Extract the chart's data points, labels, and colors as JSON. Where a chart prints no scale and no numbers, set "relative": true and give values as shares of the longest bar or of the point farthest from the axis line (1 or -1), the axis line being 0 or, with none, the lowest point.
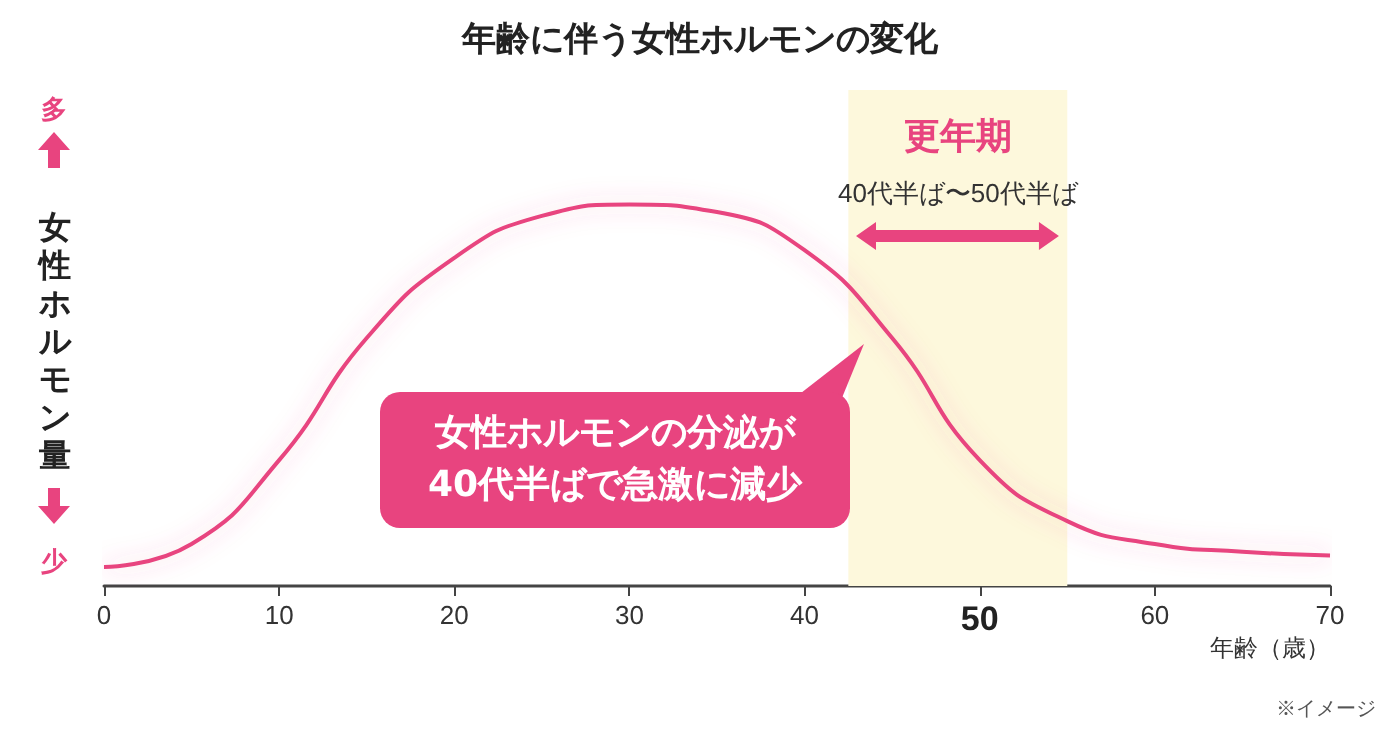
{
  "chart_data": {
    "type": "line",
    "title": "年齢に伴う女性ホルモンの変化",
    "xlabel": "年齢（歳）",
    "ylabel": "女性ホルモン量",
    "relative": true,
    "x": [
      0,
      5,
      10,
      15,
      20,
      25,
      30,
      35,
      40,
      45,
      50,
      55,
      60,
      65,
      70
    ],
    "series": [
      {
        "color": "#e8447f",
        "values": [
          0.05,
          0.11,
          0.33,
          0.65,
          0.86,
          0.97,
          1,
          0.98,
          0.88,
          0.65,
          0.33,
          0.17,
          0.11,
          0.09,
          0.08
        ]
      }
    ],
    "xlim": [
      0,
      70
    ],
    "xticks": [
      0,
      10,
      20,
      30,
      40,
      50,
      60,
      70
    ],
    "grid": false,
    "marker": "none",
    "line_style": "solid",
    "bands": [
      {
        "axis": "x",
        "from": 42.5,
        "to": 55,
        "label": "更年期",
        "color": "#fdf8dc"
      }
    ],
    "annotations": [
      "40代半ば〜50代半ば",
      "女性ホルモンの分泌が\n40代半ばで急激に減少",
      "多",
      "少",
      "※イメージ"
    ]
  }
}
